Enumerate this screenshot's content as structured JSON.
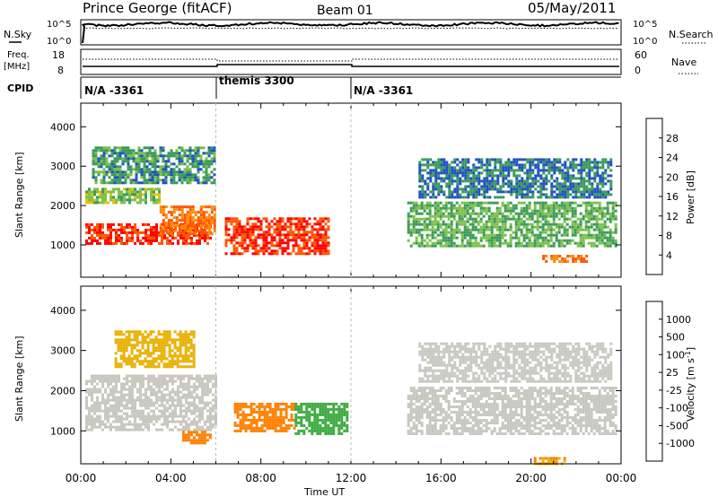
{
  "header": {
    "station": "Prince George (fitACF)",
    "beam": "Beam 01",
    "date": "05/May/2011"
  },
  "panels": {
    "nsky": {
      "label": "N.Sky",
      "right_label": "N.Search",
      "left_ticks": [
        "10^5",
        "10^0"
      ],
      "right_ticks": [
        "10^5",
        "10^0"
      ]
    },
    "freq": {
      "label_line1": "Freq.",
      "label_line2": "[MHz]",
      "right_label": "Nave",
      "left_ticks": [
        "18",
        "8"
      ],
      "right_ticks": [
        "60",
        "0"
      ]
    },
    "cpid": {
      "label": "CPID",
      "segments": [
        {
          "start_hour": 0,
          "text": "N/A -3361"
        },
        {
          "start_hour": 6,
          "text": "themis 3300"
        },
        {
          "start_hour": 12,
          "text": "N/A -3361"
        }
      ]
    }
  },
  "chart_data": [
    {
      "type": "heatmap",
      "title": "",
      "xlabel": "Time UT",
      "ylabel": "Slant Range [km]",
      "x_range_hours": [
        0,
        24
      ],
      "xticks": [
        "00:00",
        "04:00",
        "08:00",
        "12:00",
        "16:00",
        "20:00",
        "00:00"
      ],
      "ylim": [
        180,
        4600
      ],
      "yticks": [
        "1000",
        "2000",
        "3000",
        "4000"
      ],
      "colorbar": {
        "label": "Power [dB]",
        "ticks": [
          "28",
          "24",
          "20",
          "16",
          "12",
          "8",
          "4"
        ],
        "colors": [
          "#ff0000",
          "#ff5500",
          "#ff8c00",
          "#e8c000",
          "#7cc04a",
          "#3a9a5a",
          "#1f50c0",
          "#0000ff"
        ]
      },
      "bands": [
        {
          "t0": 0.2,
          "t1": 5.8,
          "r0": 1050,
          "r1": 1550,
          "level": 26
        },
        {
          "t0": 0.2,
          "t1": 3.5,
          "r0": 2100,
          "r1": 2450,
          "level": 12
        },
        {
          "t0": 3.5,
          "t1": 6.0,
          "r0": 1300,
          "r1": 2000,
          "level": 22
        },
        {
          "t0": 6.4,
          "t1": 11.0,
          "r0": 750,
          "r1": 1700,
          "level": 26
        },
        {
          "t0": 0.5,
          "t1": 6.0,
          "r0": 2600,
          "r1": 3500,
          "level": 8
        },
        {
          "t0": 14.5,
          "t1": 23.8,
          "r0": 1000,
          "r1": 2100,
          "level": 10
        },
        {
          "t0": 15.0,
          "t1": 23.5,
          "r0": 2200,
          "r1": 3200,
          "level": 6
        },
        {
          "t0": 20.5,
          "t1": 22.5,
          "r0": 550,
          "r1": 750,
          "level": 22
        }
      ]
    },
    {
      "type": "heatmap",
      "title": "",
      "xlabel": "Time UT",
      "ylabel": "Slant Range [km]",
      "x_range_hours": [
        0,
        24
      ],
      "xticks": [
        "00:00",
        "04:00",
        "08:00",
        "12:00",
        "16:00",
        "20:00",
        "00:00"
      ],
      "ylim": [
        180,
        4600
      ],
      "yticks": [
        "1000",
        "2000",
        "3000",
        "4000"
      ],
      "colorbar": {
        "label": "Velocity [m s^-1]",
        "ticks": [
          "1000",
          "500",
          "100",
          "25",
          "-25",
          "-100",
          "-500",
          "-1000"
        ],
        "colors": [
          "#1f4fb0",
          "#2a7a50",
          "#3cab40",
          "#68c040",
          "#c8c8c0",
          "#e8b000",
          "#ff8000",
          "#ff4000",
          "#ff0000"
        ]
      },
      "bands": [
        {
          "t0": 0.2,
          "t1": 6.0,
          "r0": 1000,
          "r1": 2400,
          "level": 0
        },
        {
          "t0": 1.5,
          "t1": 5.0,
          "r0": 2600,
          "r1": 3500,
          "level": -50
        },
        {
          "t0": 4.5,
          "t1": 5.8,
          "r0": 700,
          "r1": 1000,
          "level": -300
        },
        {
          "t0": 6.8,
          "t1": 9.5,
          "r0": 1000,
          "r1": 1700,
          "level": -300
        },
        {
          "t0": 9.5,
          "t1": 11.8,
          "r0": 900,
          "r1": 1700,
          "level": 300
        },
        {
          "t0": 14.5,
          "t1": 23.8,
          "r0": 900,
          "r1": 2100,
          "level": 0
        },
        {
          "t0": 15.0,
          "t1": 23.5,
          "r0": 2200,
          "r1": 3200,
          "level": 0
        },
        {
          "t0": 20.0,
          "t1": 21.5,
          "r0": 200,
          "r1": 350,
          "level": -100
        }
      ]
    }
  ]
}
